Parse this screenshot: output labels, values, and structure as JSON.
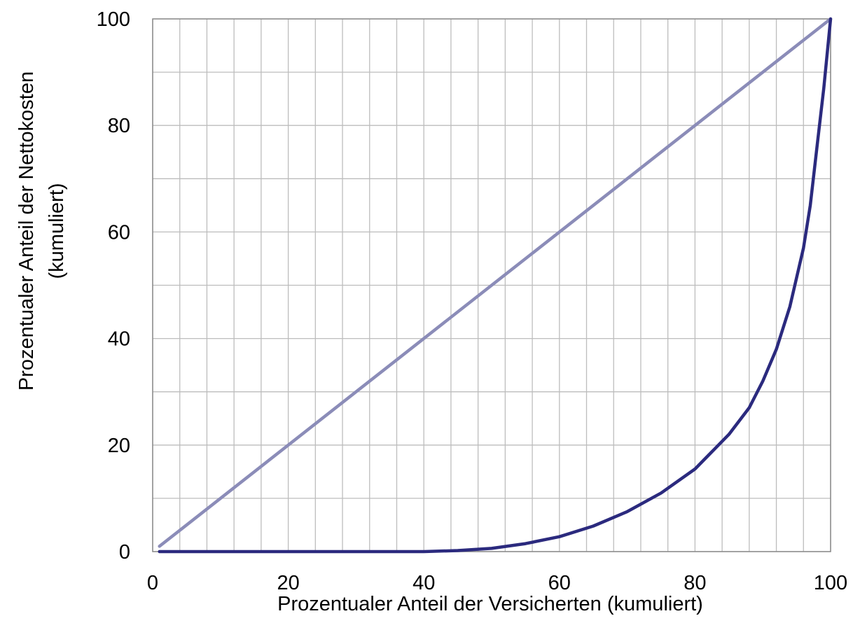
{
  "chart_data": {
    "type": "line",
    "xlabel": "Prozentualer Anteil der Versicherten (kumuliert)",
    "ylabel_lines": [
      "Prozentualer Anteil der Nettokosten",
      "(kumuliert)"
    ],
    "xlim": [
      0,
      100
    ],
    "ylim": [
      0,
      100
    ],
    "x_major_ticks": [
      0,
      20,
      40,
      60,
      80,
      100
    ],
    "x_tick_labels": [
      "0",
      "20",
      "40",
      "60",
      "80",
      "100"
    ],
    "y_major_ticks": [
      0,
      20,
      40,
      60,
      80,
      100
    ],
    "y_tick_labels": [
      "0",
      "20",
      "40",
      "60",
      "80",
      "100"
    ],
    "x_grid_step": 4,
    "y_grid_step": 10,
    "grid": true,
    "series": [
      {
        "color": "#8b8cb8",
        "x": [
          1,
          100
        ],
        "y": [
          1,
          100
        ]
      },
      {
        "color": "#2b2a7e",
        "x": [
          1,
          10,
          20,
          30,
          40,
          45,
          50,
          55,
          60,
          65,
          70,
          75,
          80,
          85,
          88,
          90,
          92,
          94,
          96,
          97,
          98,
          99,
          100
        ],
        "y": [
          0,
          0,
          0,
          0,
          0,
          0.2,
          0.6,
          1.5,
          2.8,
          4.8,
          7.5,
          11,
          15.5,
          22,
          27,
          32,
          38,
          46,
          57,
          65,
          76,
          87,
          100
        ]
      }
    ]
  }
}
